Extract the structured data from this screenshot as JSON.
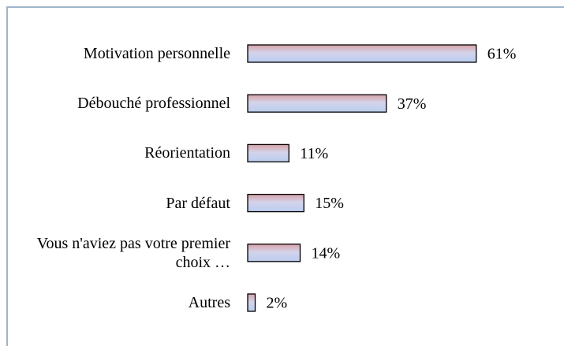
{
  "chart_data": {
    "type": "bar",
    "orientation": "horizontal",
    "categories": [
      "Motivation personnelle",
      "Débouché professionnel",
      "Réorientation",
      "Par défaut",
      "Vous n'aviez pas votre premier choix …",
      "Autres"
    ],
    "values": [
      61,
      37,
      11,
      15,
      14,
      2
    ],
    "value_labels": [
      "61%",
      "37%",
      "11%",
      "15%",
      "14%",
      "2%"
    ]
  }
}
